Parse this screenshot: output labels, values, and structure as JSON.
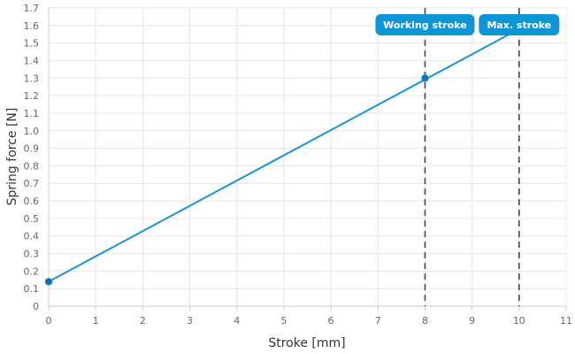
{
  "chart_data": {
    "type": "line",
    "xlabel": "Stroke [mm]",
    "ylabel": "Spring force [N]",
    "xlim": [
      0,
      11
    ],
    "ylim": [
      0,
      1.7
    ],
    "x_ticks": [
      "0",
      "1",
      "2",
      "3",
      "4",
      "5",
      "6",
      "7",
      "8",
      "9",
      "10",
      "11"
    ],
    "y_ticks": [
      "0",
      "0.1",
      "0.2",
      "0.3",
      "0.4",
      "0.5",
      "0.6",
      "0.7",
      "0.8",
      "0.9",
      "1.0",
      "1.1",
      "1.2",
      "1.3",
      "1.4",
      "1.5",
      "1.6",
      "1.7"
    ],
    "grid": true,
    "series": [
      {
        "x": [
          0,
          10
        ],
        "y": [
          0.14,
          1.58
        ],
        "color": "#1a94d3"
      }
    ],
    "markers": [
      {
        "x": 0,
        "y": 0.14
      },
      {
        "x": 8,
        "y": 1.3
      }
    ],
    "reference_lines": [
      {
        "x": 8,
        "label": "Working stroke"
      },
      {
        "x": 10,
        "label": "Max. stroke"
      }
    ],
    "colors": {
      "line": "#1a94d3",
      "marker": "#1a6fa3",
      "badge": "#0d96d6",
      "reference": "#444444",
      "grid": "#e6e6e6",
      "axis": "#cccccc"
    }
  }
}
